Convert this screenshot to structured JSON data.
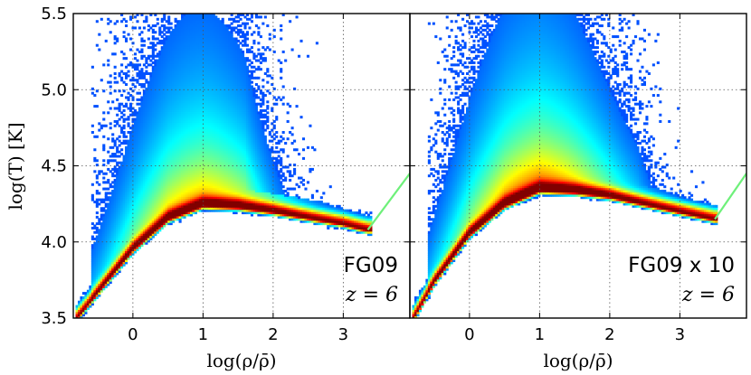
{
  "chart_data": [
    {
      "type": "heatmap",
      "description_label": "FG09",
      "redshift_label": "z = 6",
      "xlabel": "log(ρ/ρ̄)",
      "ylabel": "log(T) [K]",
      "xlim": [
        -0.85,
        3.95
      ],
      "ylim": [
        3.5,
        5.5
      ],
      "x_ticks": [
        0,
        1,
        2,
        3
      ],
      "y_ticks": [
        3.5,
        4.0,
        4.5,
        5.0,
        5.5
      ],
      "y_tick_labels": [
        "3.5",
        "4.0",
        "4.5",
        "5.0",
        "5.5"
      ],
      "grid": true,
      "colormap": "jet",
      "ridge": {
        "x": [
          -0.8,
          -0.5,
          0.0,
          0.5,
          1.0,
          1.5,
          2.0,
          2.5,
          3.0,
          3.35
        ],
        "y": [
          3.5,
          3.67,
          3.95,
          4.15,
          4.24,
          4.23,
          4.2,
          4.16,
          4.12,
          4.08
        ]
      },
      "extension_line": {
        "x": [
          3.35,
          3.95
        ],
        "y": [
          4.08,
          4.45
        ]
      },
      "hot_plume_peak_log_T": 5.5
    },
    {
      "type": "heatmap",
      "description_label": "FG09 x 10",
      "redshift_label": "z = 6",
      "xlabel": "log(ρ/ρ̄)",
      "ylabel": "",
      "xlim": [
        -0.85,
        3.95
      ],
      "ylim": [
        3.5,
        5.5
      ],
      "x_ticks": [
        0,
        1,
        2,
        3
      ],
      "grid": true,
      "colormap": "jet",
      "ridge": {
        "x": [
          -0.8,
          -0.5,
          0.0,
          0.5,
          1.0,
          1.5,
          2.0,
          2.5,
          3.0,
          3.5
        ],
        "y": [
          3.5,
          3.74,
          4.05,
          4.24,
          4.34,
          4.33,
          4.3,
          4.25,
          4.2,
          4.15
        ]
      },
      "extension_line": {
        "x": [
          3.5,
          3.95
        ],
        "y": [
          4.15,
          4.45
        ]
      },
      "hot_plume_peak_log_T": 5.5
    }
  ]
}
